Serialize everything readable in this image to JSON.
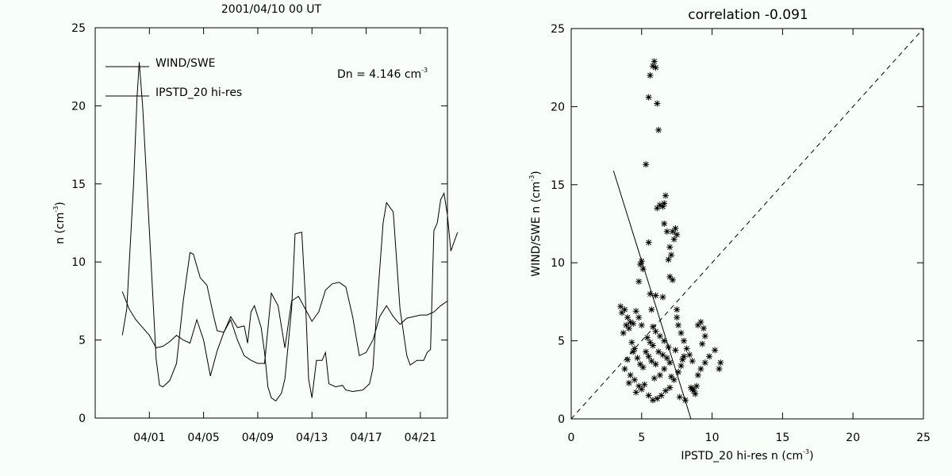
{
  "colors": {
    "background": "#f8fff8",
    "ink": "#000000"
  },
  "chart_data": [
    {
      "type": "line",
      "title": "2001/04/10 00 UT",
      "xlabel": "",
      "ylabel": "n (cm",
      "ylabel_sup": "-3",
      "ylabel_close": ")",
      "xlim": [
        "2001-03-28",
        "2001-04-23"
      ],
      "ylim": [
        0,
        25
      ],
      "yticks": [
        0,
        5,
        10,
        15,
        20,
        25
      ],
      "xticks": [
        {
          "date": "2001-04-01",
          "label": "04/01"
        },
        {
          "date": "2001-04-05",
          "label": "04/05"
        },
        {
          "date": "2001-04-09",
          "label": "04/09"
        },
        {
          "date": "2001-04-13",
          "label": "04/13"
        },
        {
          "date": "2001-04-17",
          "label": "04/17"
        },
        {
          "date": "2001-04-21",
          "label": "04/21"
        }
      ],
      "annotation": "Dn = 4.146 cm",
      "annotation_sup": "-3",
      "grid": false,
      "legend_position": "top-left",
      "series": [
        {
          "name": "WIND/SWE",
          "points": [
            [
              "2001-03-30T00:00",
              5.3
            ],
            [
              "2001-03-30T08:00",
              7.0
            ],
            [
              "2001-03-30T20:00",
              15.0
            ],
            [
              "2001-03-31T02:00",
              20.5
            ],
            [
              "2001-03-31T06:00",
              22.8
            ],
            [
              "2001-03-31T12:00",
              20.0
            ],
            [
              "2001-04-01T00:00",
              12.0
            ],
            [
              "2001-04-01T12:00",
              3.8
            ],
            [
              "2001-04-01T18:00",
              2.1
            ],
            [
              "2001-04-02T00:00",
              2.0
            ],
            [
              "2001-04-02T12:00",
              2.4
            ],
            [
              "2001-04-03T00:00",
              3.5
            ],
            [
              "2001-04-03T12:00",
              7.5
            ],
            [
              "2001-04-04T00:00",
              10.6
            ],
            [
              "2001-04-04T06:00",
              10.5
            ],
            [
              "2001-04-04T18:00",
              9.0
            ],
            [
              "2001-04-05T06:00",
              8.5
            ],
            [
              "2001-04-05T18:00",
              6.5
            ],
            [
              "2001-04-06T00:00",
              5.6
            ],
            [
              "2001-04-06T12:00",
              5.5
            ],
            [
              "2001-04-07T00:00",
              6.5
            ],
            [
              "2001-04-07T12:00",
              5.8
            ],
            [
              "2001-04-08T00:00",
              5.9
            ],
            [
              "2001-04-08T06:00",
              4.8
            ],
            [
              "2001-04-08T12:00",
              6.8
            ],
            [
              "2001-04-08T18:00",
              7.2
            ],
            [
              "2001-04-09T06:00",
              5.8
            ],
            [
              "2001-04-09T12:00",
              4.2
            ],
            [
              "2001-04-09T18:00",
              2.0
            ],
            [
              "2001-04-10T00:00",
              1.3
            ],
            [
              "2001-04-10T08:00",
              1.1
            ],
            [
              "2001-04-10T18:00",
              1.6
            ],
            [
              "2001-04-11T00:00",
              2.5
            ],
            [
              "2001-04-11T12:00",
              7.0
            ],
            [
              "2001-04-11T18:00",
              11.8
            ],
            [
              "2001-04-12T06:00",
              11.9
            ],
            [
              "2001-04-12T12:00",
              8.0
            ],
            [
              "2001-04-12T18:00",
              2.5
            ],
            [
              "2001-04-13T00:00",
              1.3
            ],
            [
              "2001-04-13T08:00",
              3.7
            ],
            [
              "2001-04-13T18:00",
              3.7
            ],
            [
              "2001-04-14T00:00",
              4.2
            ],
            [
              "2001-04-14T06:00",
              2.2
            ],
            [
              "2001-04-14T18:00",
              2.0
            ],
            [
              "2001-04-15T06:00",
              2.1
            ],
            [
              "2001-04-15T12:00",
              1.8
            ],
            [
              "2001-04-16T00:00",
              1.7
            ],
            [
              "2001-04-16T18:00",
              1.8
            ],
            [
              "2001-04-17T06:00",
              2.2
            ],
            [
              "2001-04-17T12:00",
              3.2
            ],
            [
              "2001-04-17T18:00",
              6.5
            ],
            [
              "2001-04-18T06:00",
              12.5
            ],
            [
              "2001-04-18T12:00",
              13.8
            ],
            [
              "2001-04-19T00:00",
              13.2
            ],
            [
              "2001-04-19T12:00",
              7.0
            ],
            [
              "2001-04-20T00:00",
              4.0
            ],
            [
              "2001-04-20T06:00",
              3.4
            ],
            [
              "2001-04-20T18:00",
              3.7
            ],
            [
              "2001-04-21T06:00",
              3.7
            ],
            [
              "2001-04-21T12:00",
              4.2
            ],
            [
              "2001-04-21T18:00",
              4.4
            ],
            [
              "2001-04-22T00:00",
              12.0
            ],
            [
              "2001-04-22T06:00",
              12.5
            ],
            [
              "2001-04-22T12:00",
              14.0
            ],
            [
              "2001-04-22T18:00",
              14.4
            ],
            [
              "2001-04-23T00:00",
              13.0
            ],
            [
              "2001-04-23T06:00",
              10.7
            ],
            [
              "2001-04-23T12:00",
              11.3
            ],
            [
              "2001-04-23T18:00",
              11.9
            ]
          ]
        },
        {
          "name": "IPSTD_20 hi-res",
          "points": [
            [
              "2001-03-30T00:00",
              8.1
            ],
            [
              "2001-03-30T12:00",
              7.0
            ],
            [
              "2001-03-31T00:00",
              6.3
            ],
            [
              "2001-03-31T12:00",
              5.8
            ],
            [
              "2001-04-01T00:00",
              5.3
            ],
            [
              "2001-04-01T12:00",
              4.5
            ],
            [
              "2001-04-02T00:00",
              4.6
            ],
            [
              "2001-04-02T12:00",
              4.9
            ],
            [
              "2001-04-03T00:00",
              5.3
            ],
            [
              "2001-04-03T12:00",
              5.0
            ],
            [
              "2001-04-04T00:00",
              4.8
            ],
            [
              "2001-04-04T12:00",
              6.3
            ],
            [
              "2001-04-05T00:00",
              5.0
            ],
            [
              "2001-04-05T12:00",
              2.7
            ],
            [
              "2001-04-06T00:00",
              4.3
            ],
            [
              "2001-04-06T12:00",
              5.5
            ],
            [
              "2001-04-07T00:00",
              6.3
            ],
            [
              "2001-04-07T12:00",
              5.0
            ],
            [
              "2001-04-08T00:00",
              4.0
            ],
            [
              "2001-04-08T12:00",
              3.7
            ],
            [
              "2001-04-09T00:00",
              3.5
            ],
            [
              "2001-04-09T12:00",
              3.5
            ],
            [
              "2001-04-10T00:00",
              8.0
            ],
            [
              "2001-04-10T12:00",
              7.2
            ],
            [
              "2001-04-11T00:00",
              4.5
            ],
            [
              "2001-04-11T12:00",
              7.5
            ],
            [
              "2001-04-12T00:00",
              7.8
            ],
            [
              "2001-04-12T12:00",
              7.0
            ],
            [
              "2001-04-13T00:00",
              6.2
            ],
            [
              "2001-04-13T12:00",
              6.8
            ],
            [
              "2001-04-14T00:00",
              8.2
            ],
            [
              "2001-04-14T12:00",
              8.6
            ],
            [
              "2001-04-15T00:00",
              8.7
            ],
            [
              "2001-04-15T12:00",
              8.4
            ],
            [
              "2001-04-16T00:00",
              6.5
            ],
            [
              "2001-04-16T12:00",
              4.0
            ],
            [
              "2001-04-17T00:00",
              4.2
            ],
            [
              "2001-04-17T12:00",
              5.0
            ],
            [
              "2001-04-18T00:00",
              6.5
            ],
            [
              "2001-04-18T12:00",
              7.2
            ],
            [
              "2001-04-19T00:00",
              6.5
            ],
            [
              "2001-04-19T12:00",
              6.0
            ],
            [
              "2001-04-20T00:00",
              6.4
            ],
            [
              "2001-04-20T12:00",
              6.5
            ],
            [
              "2001-04-21T00:00",
              6.6
            ],
            [
              "2001-04-21T12:00",
              6.6
            ],
            [
              "2001-04-22T00:00",
              6.8
            ],
            [
              "2001-04-22T12:00",
              7.2
            ],
            [
              "2001-04-23T00:00",
              7.5
            ]
          ]
        }
      ]
    },
    {
      "type": "scatter",
      "title": "correlation -0.091",
      "xlabel": "IPSTD_20 hi-res n (cm",
      "xlabel_sup": "-3",
      "xlabel_close": ")",
      "ylabel": "WIND/SWE n (cm",
      "ylabel_sup": "-3",
      "ylabel_close": ")",
      "xlim": [
        0,
        25
      ],
      "ylim": [
        0,
        25
      ],
      "xticks": [
        0,
        5,
        10,
        15,
        20,
        25
      ],
      "yticks": [
        0,
        5,
        10,
        15,
        20,
        25
      ],
      "marker": "asterisk",
      "grid": false,
      "reference_line": {
        "style": "dashed",
        "points": [
          [
            0,
            0
          ],
          [
            25,
            25
          ]
        ]
      },
      "fit_line": {
        "style": "solid",
        "points": [
          [
            3.0,
            15.9
          ],
          [
            8.5,
            0
          ]
        ]
      },
      "points": [
        [
          5.6,
          22.0
        ],
        [
          5.8,
          22.6
        ],
        [
          5.9,
          22.9
        ],
        [
          6.0,
          22.5
        ],
        [
          5.5,
          20.6
        ],
        [
          6.1,
          20.2
        ],
        [
          6.2,
          18.5
        ],
        [
          5.3,
          16.3
        ],
        [
          6.7,
          14.3
        ],
        [
          6.6,
          13.8
        ],
        [
          6.3,
          13.7
        ],
        [
          6.5,
          13.6
        ],
        [
          6.1,
          13.5
        ],
        [
          7.4,
          12.2
        ],
        [
          7.2,
          12.0
        ],
        [
          7.5,
          11.8
        ],
        [
          6.6,
          12.5
        ],
        [
          6.8,
          12.0
        ],
        [
          5.5,
          11.3
        ],
        [
          7.3,
          11.5
        ],
        [
          7.0,
          11.0
        ],
        [
          7.1,
          10.5
        ],
        [
          6.9,
          10.2
        ],
        [
          5.0,
          10.1
        ],
        [
          4.9,
          9.9
        ],
        [
          5.1,
          9.6
        ],
        [
          7.0,
          9.1
        ],
        [
          7.2,
          8.9
        ],
        [
          4.8,
          8.8
        ],
        [
          5.6,
          8.0
        ],
        [
          6.0,
          7.9
        ],
        [
          6.5,
          7.8
        ],
        [
          5.7,
          7.0
        ],
        [
          7.5,
          7.0
        ],
        [
          3.5,
          7.2
        ],
        [
          3.8,
          7.0
        ],
        [
          3.6,
          6.8
        ],
        [
          4.0,
          6.5
        ],
        [
          4.2,
          6.2
        ],
        [
          3.9,
          6.0
        ],
        [
          4.4,
          6.1
        ],
        [
          4.6,
          6.9
        ],
        [
          4.8,
          6.5
        ],
        [
          5.0,
          6.0
        ],
        [
          4.1,
          5.8
        ],
        [
          3.7,
          5.5
        ],
        [
          5.4,
          5.2
        ],
        [
          5.6,
          4.9
        ],
        [
          5.8,
          4.7
        ],
        [
          6.2,
          4.3
        ],
        [
          6.5,
          4.1
        ],
        [
          6.8,
          3.9
        ],
        [
          7.0,
          3.6
        ],
        [
          5.5,
          4.0
        ],
        [
          5.7,
          3.7
        ],
        [
          6.0,
          3.5
        ],
        [
          4.5,
          4.5
        ],
        [
          4.0,
          3.8
        ],
        [
          3.8,
          3.2
        ],
        [
          4.2,
          2.8
        ],
        [
          4.5,
          2.5
        ],
        [
          4.8,
          2.1
        ],
        [
          5.0,
          1.9
        ],
        [
          5.2,
          2.2
        ],
        [
          5.5,
          1.5
        ],
        [
          5.8,
          1.2
        ],
        [
          6.1,
          1.3
        ],
        [
          6.4,
          1.5
        ],
        [
          6.7,
          1.8
        ],
        [
          7.0,
          2.0
        ],
        [
          7.3,
          2.5
        ],
        [
          7.6,
          3.0
        ],
        [
          7.8,
          3.4
        ],
        [
          8.0,
          4.0
        ],
        [
          8.2,
          4.5
        ],
        [
          8.0,
          5.0
        ],
        [
          7.8,
          5.5
        ],
        [
          7.6,
          6.0
        ],
        [
          7.5,
          6.5
        ],
        [
          8.5,
          2.0
        ],
        [
          8.7,
          1.8
        ],
        [
          8.8,
          1.6
        ],
        [
          8.6,
          1.9
        ],
        [
          8.9,
          2.1
        ],
        [
          9.0,
          2.8
        ],
        [
          9.2,
          3.2
        ],
        [
          9.5,
          3.6
        ],
        [
          9.8,
          4.0
        ],
        [
          10.2,
          4.4
        ],
        [
          10.6,
          3.6
        ],
        [
          10.5,
          3.2
        ],
        [
          9.3,
          4.8
        ],
        [
          9.5,
          5.3
        ],
        [
          9.4,
          5.8
        ],
        [
          9.2,
          6.2
        ],
        [
          9.0,
          6.0
        ],
        [
          8.6,
          3.7
        ],
        [
          8.4,
          4.1
        ],
        [
          7.9,
          3.8
        ],
        [
          7.4,
          4.4
        ],
        [
          6.9,
          4.6
        ],
        [
          6.6,
          5.0
        ],
        [
          6.3,
          5.3
        ],
        [
          6.0,
          5.6
        ],
        [
          5.8,
          5.9
        ],
        [
          5.3,
          4.3
        ],
        [
          5.1,
          3.3
        ],
        [
          4.9,
          3.5
        ],
        [
          4.7,
          3.9
        ],
        [
          4.4,
          4.3
        ],
        [
          4.3,
          4.9
        ],
        [
          4.1,
          2.3
        ],
        [
          4.6,
          1.7
        ],
        [
          5.9,
          2.6
        ],
        [
          6.3,
          2.8
        ],
        [
          6.6,
          3.2
        ],
        [
          7.1,
          2.7
        ],
        [
          7.7,
          1.4
        ],
        [
          8.1,
          1.2
        ]
      ]
    }
  ]
}
